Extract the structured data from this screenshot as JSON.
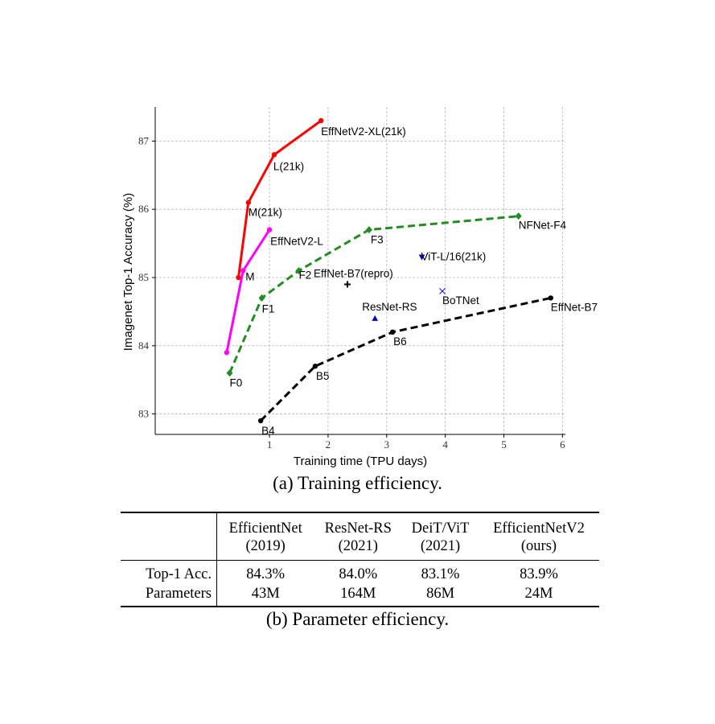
{
  "chart_data": {
    "type": "line",
    "title": "",
    "xlabel": "Training time (TPU days)",
    "ylabel": "Imagenet Top-1 Accuracy (%)",
    "xlim": [
      -0.95,
      6.05
    ],
    "ylim": [
      82.7,
      87.5
    ],
    "xticks": [
      1,
      2,
      3,
      4,
      5,
      6
    ],
    "yticks": [
      83,
      84,
      85,
      86,
      87
    ],
    "grid": true,
    "series": [
      {
        "name": "EfficientNetV2-XL(21k)",
        "color": "#ff0000",
        "style": "solid",
        "marker": "circle",
        "x": [
          0.47,
          0.64,
          1.08,
          1.88
        ],
        "y": [
          85.0,
          86.1,
          86.8,
          87.3
        ],
        "point_labels": [
          "",
          "M(21k)",
          "L(21k)",
          "EffNetV2-XL(21k)"
        ]
      },
      {
        "name": "EffNetV2-L",
        "color": "#ff00ff",
        "style": "solid",
        "marker": "circle",
        "x": [
          0.27,
          0.55,
          1.0
        ],
        "y": [
          83.9,
          85.1,
          85.7
        ],
        "point_labels": [
          "",
          "M",
          "EffNetV2-L"
        ]
      },
      {
        "name": "NFNet-F4",
        "color": "#228b22",
        "style": "dashed",
        "marker": "diamond",
        "x": [
          0.32,
          0.87,
          1.5,
          2.7,
          5.25
        ],
        "y": [
          83.6,
          84.7,
          85.1,
          85.7,
          85.9
        ],
        "point_labels": [
          "F0",
          "F1",
          "F2",
          "F3",
          "NFNet-F4"
        ]
      },
      {
        "name": "EffNet-B7",
        "color": "#000000",
        "style": "dashed",
        "marker": "circle",
        "x": [
          0.85,
          1.78,
          3.1,
          5.8
        ],
        "y": [
          82.9,
          83.7,
          84.2,
          84.7
        ],
        "point_labels": [
          "B4",
          "B5",
          "B6",
          "EffNet-B7"
        ]
      },
      {
        "name": "EffNet-B7(repro)",
        "color": "#000000",
        "style": "none",
        "marker": "plus",
        "x": [
          2.33
        ],
        "y": [
          84.9
        ],
        "point_labels": [
          "EffNet-B7(repro)"
        ]
      },
      {
        "name": "ResNet-RS",
        "color": "#0000cc",
        "style": "none",
        "marker": "triangle-up",
        "x": [
          2.8
        ],
        "y": [
          84.4
        ],
        "point_labels": [
          "ResNet-RS"
        ]
      },
      {
        "name": "ViT-L/16(21k)",
        "color": "#0000cc",
        "style": "none",
        "marker": "triangle-down",
        "x": [
          3.6
        ],
        "y": [
          85.3
        ],
        "point_labels": [
          "ViT-L/16(21k)"
        ]
      },
      {
        "name": "BoTNet",
        "color": "#0000cc",
        "style": "none",
        "marker": "x",
        "x": [
          3.95
        ],
        "y": [
          84.8
        ],
        "point_labels": [
          "BoTNet"
        ]
      }
    ]
  },
  "captions": {
    "a": "(a) Training efficiency.",
    "b": "(b) Parameter efficiency."
  },
  "table": {
    "columns": [
      {
        "name": "EfficientNet",
        "year": "(2019)"
      },
      {
        "name": "ResNet-RS",
        "year": "(2021)"
      },
      {
        "name": "DeiT/ViT",
        "year": "(2021)"
      },
      {
        "name": "EfficientNetV2",
        "year": "(ours)"
      }
    ],
    "rows": [
      {
        "label": "Top-1 Acc.",
        "values": [
          "84.3%",
          "84.0%",
          "83.1%",
          "83.9%"
        ]
      },
      {
        "label": "Parameters",
        "values": [
          "43M",
          "164M",
          "86M",
          "24M"
        ]
      }
    ]
  }
}
